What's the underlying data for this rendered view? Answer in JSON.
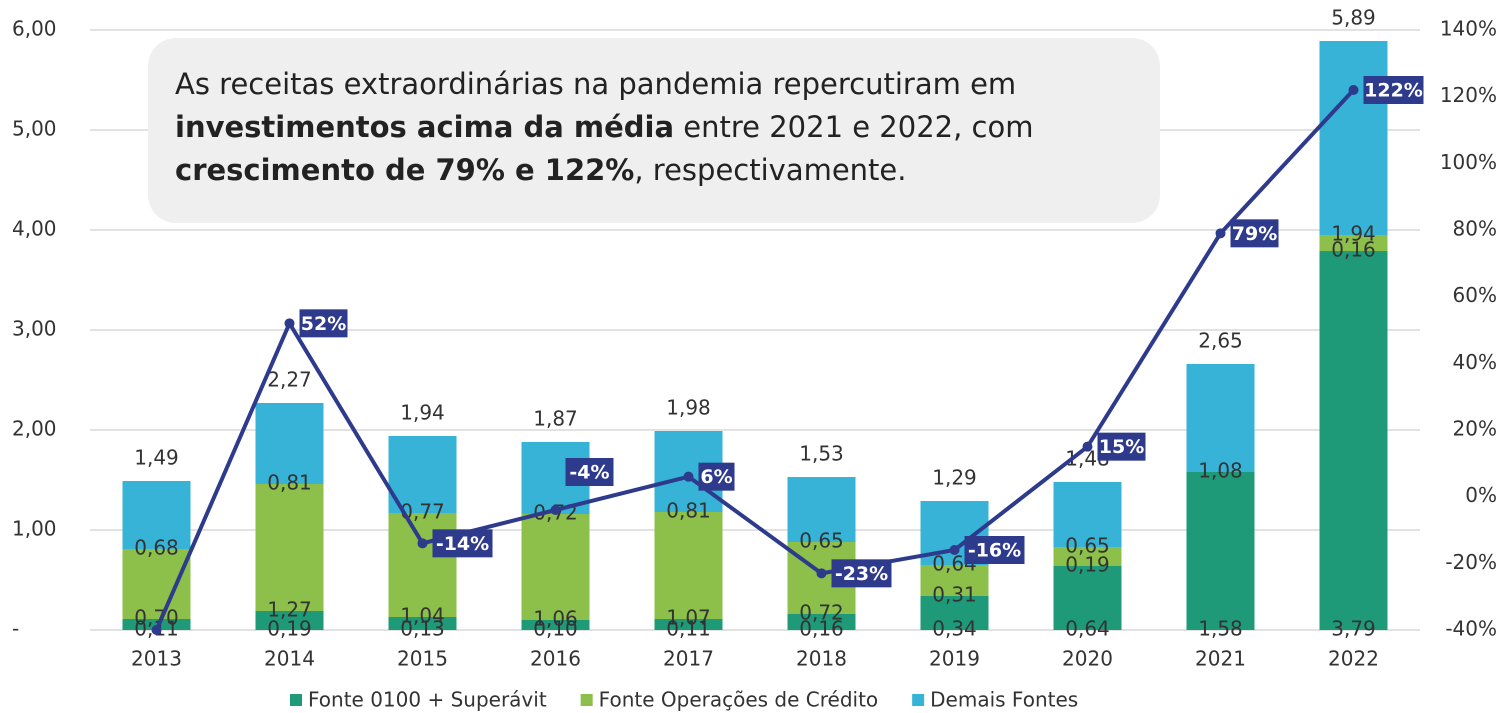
{
  "chart_data": {
    "type": "bar",
    "stacked": true,
    "categories": [
      "2013",
      "2014",
      "2015",
      "2016",
      "2017",
      "2018",
      "2019",
      "2020",
      "2021",
      "2022"
    ],
    "series": [
      {
        "name": "Fonte 0100 + Superávit",
        "color": "#1e9a78",
        "values": [
          0.11,
          0.19,
          0.13,
          0.1,
          0.11,
          0.16,
          0.34,
          0.64,
          1.58,
          3.79
        ],
        "value_labels": [
          "0,11",
          "0,19",
          "0,13",
          "0,10",
          "0,11",
          "0,16",
          "0,34",
          "0,64",
          "1,58",
          "3,79"
        ]
      },
      {
        "name": "Fonte Operações de Crédito",
        "color": "#8cc04a",
        "values": [
          0.7,
          1.27,
          1.04,
          1.06,
          1.07,
          0.72,
          0.31,
          0.19,
          0,
          0.16
        ],
        "value_labels": [
          "0,70",
          "1,27",
          "1,04",
          "1,06",
          "1,07",
          "0,72",
          "0,31",
          "0,19",
          "-",
          "0,16"
        ]
      },
      {
        "name": "Demais Fontes",
        "color": "#36b3d6",
        "values": [
          0.68,
          0.81,
          0.77,
          0.72,
          0.81,
          0.65,
          0.64,
          0.65,
          1.08,
          1.94
        ],
        "value_labels": [
          "0,68",
          "0,81",
          "0,77",
          "0,72",
          "0,81",
          "0,65",
          "0,64",
          "0,65",
          "1,08",
          "1,94"
        ]
      },
      {
        "type": "line",
        "axis": "y2",
        "color": "#2e3a8c",
        "values": [
          -40,
          52,
          -14,
          -4,
          6,
          -23,
          -16,
          15,
          79,
          122
        ],
        "value_labels": [
          null,
          "52%",
          "-14%",
          "-4%",
          "6%",
          "-23%",
          "-16%",
          "15%",
          "79%",
          "122%"
        ]
      }
    ],
    "totals": {
      "values": [
        1.49,
        2.27,
        1.94,
        1.87,
        1.98,
        1.53,
        1.29,
        1.48,
        2.65,
        5.89
      ],
      "value_labels": [
        "1,49",
        "2,27",
        "1,94",
        "1,87",
        "1,98",
        "1,53",
        "1,29",
        "1,48",
        "2,65",
        "5,89"
      ]
    },
    "ylim": [
      0,
      6
    ],
    "yticks": [
      {
        "value": 0,
        "label": "-"
      },
      {
        "value": 1,
        "label": "1,00"
      },
      {
        "value": 2,
        "label": "2,00"
      },
      {
        "value": 3,
        "label": "3,00"
      },
      {
        "value": 4,
        "label": "4,00"
      },
      {
        "value": 5,
        "label": "5,00"
      },
      {
        "value": 6,
        "label": "6,00"
      }
    ],
    "y2lim": [
      -40,
      140
    ],
    "y2ticks": [
      {
        "value": -40,
        "label": "-40%"
      },
      {
        "value": -20,
        "label": "-20%"
      },
      {
        "value": 0,
        "label": "0%"
      },
      {
        "value": 20,
        "label": "20%"
      },
      {
        "value": 40,
        "label": "40%"
      },
      {
        "value": 60,
        "label": "60%"
      },
      {
        "value": 80,
        "label": "80%"
      },
      {
        "value": 100,
        "label": "100%"
      },
      {
        "value": 120,
        "label": "120%"
      },
      {
        "value": 140,
        "label": "140%"
      }
    ],
    "grid": true,
    "legend": "bottom",
    "annotation": [
      [
        {
          "text": "As receitas extraordinárias na pandemia repercutiram em",
          "bold": false
        }
      ],
      [
        {
          "text": "investimentos acima da média",
          "bold": true
        },
        {
          "text": " entre 2021 e 2022, com",
          "bold": false
        }
      ],
      [
        {
          "text": "crescimento de 79% e 122%",
          "bold": true
        },
        {
          "text": ", respectivamente.",
          "bold": false
        }
      ]
    ]
  }
}
